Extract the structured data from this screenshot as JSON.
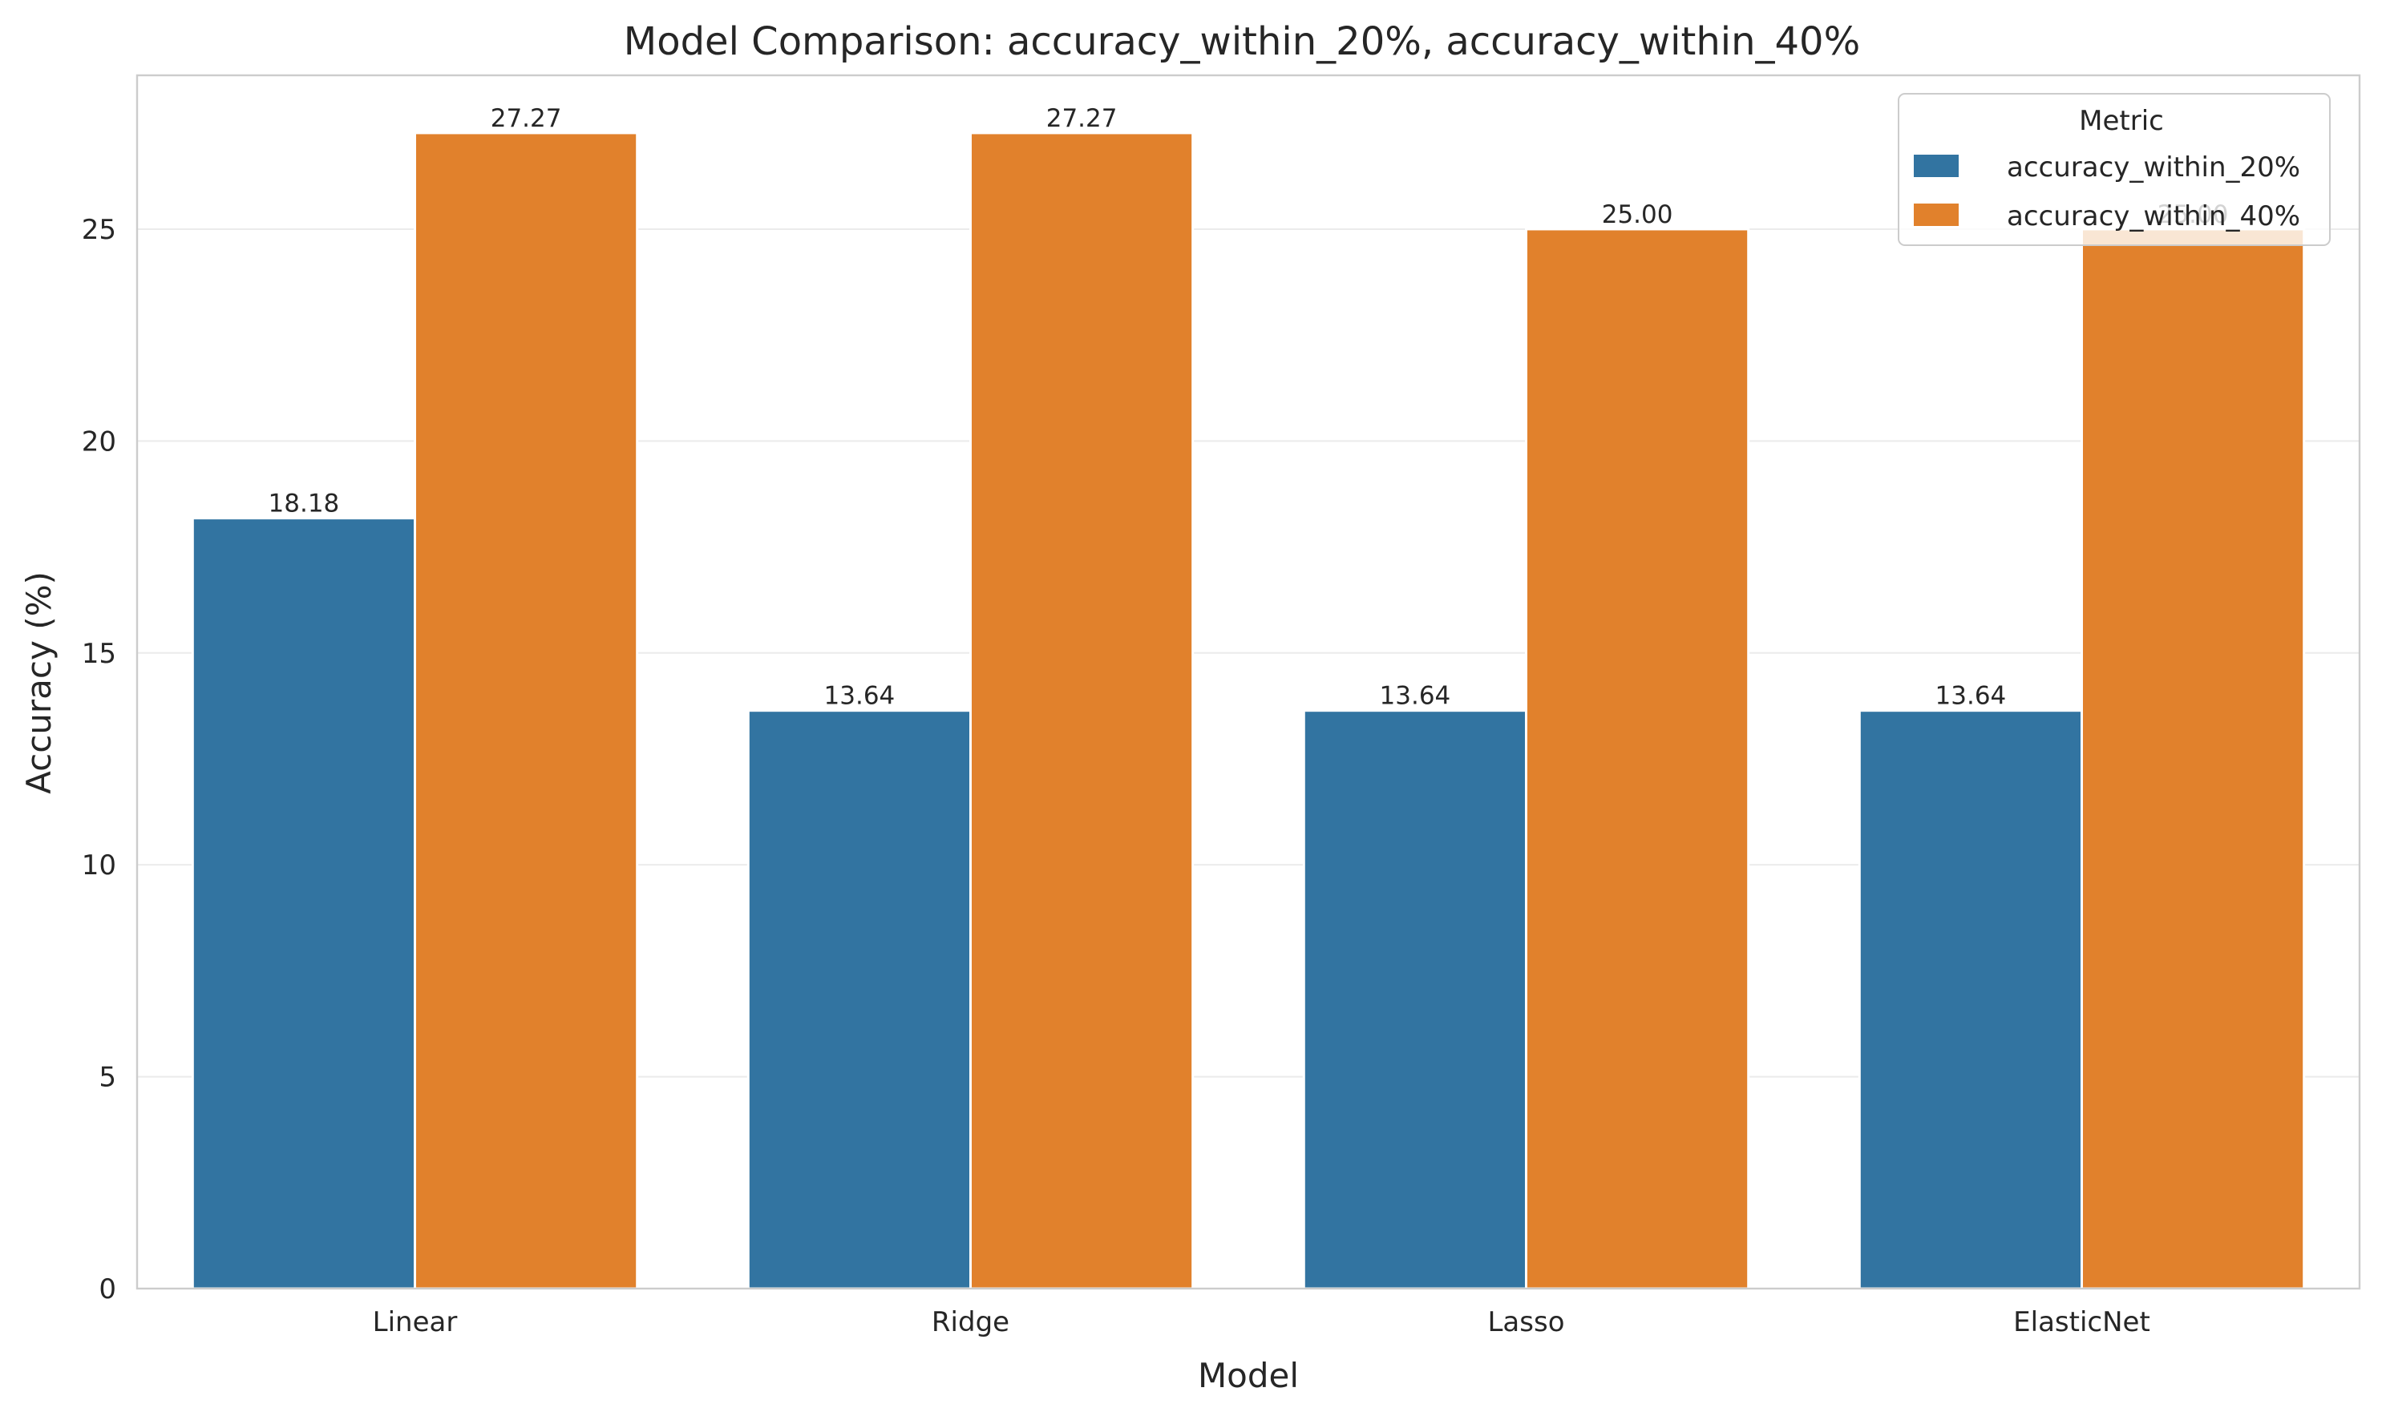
{
  "chart_data": {
    "type": "bar",
    "title": "Model Comparison: accuracy_within_20%, accuracy_within_40%",
    "xlabel": "Model",
    "ylabel": "Accuracy (%)",
    "categories": [
      "Linear",
      "Ridge",
      "Lasso",
      "ElasticNet"
    ],
    "series": [
      {
        "name": "accuracy_within_20%",
        "values": [
          18.18,
          13.64,
          13.64,
          13.64
        ],
        "labels": [
          "18.18",
          "13.64",
          "13.64",
          "13.64"
        ],
        "color": "#3274a1"
      },
      {
        "name": "accuracy_within_40%",
        "values": [
          27.27,
          27.27,
          25.0,
          25.0
        ],
        "labels": [
          "27.27",
          "27.27",
          "25.00",
          "25.00"
        ],
        "color": "#e1812c"
      }
    ],
    "ylim": [
      0,
      28.63
    ],
    "yticks": [
      0,
      5,
      10,
      15,
      20,
      25
    ],
    "grid": true,
    "legend": {
      "title": "Metric",
      "position": "top-right"
    }
  }
}
